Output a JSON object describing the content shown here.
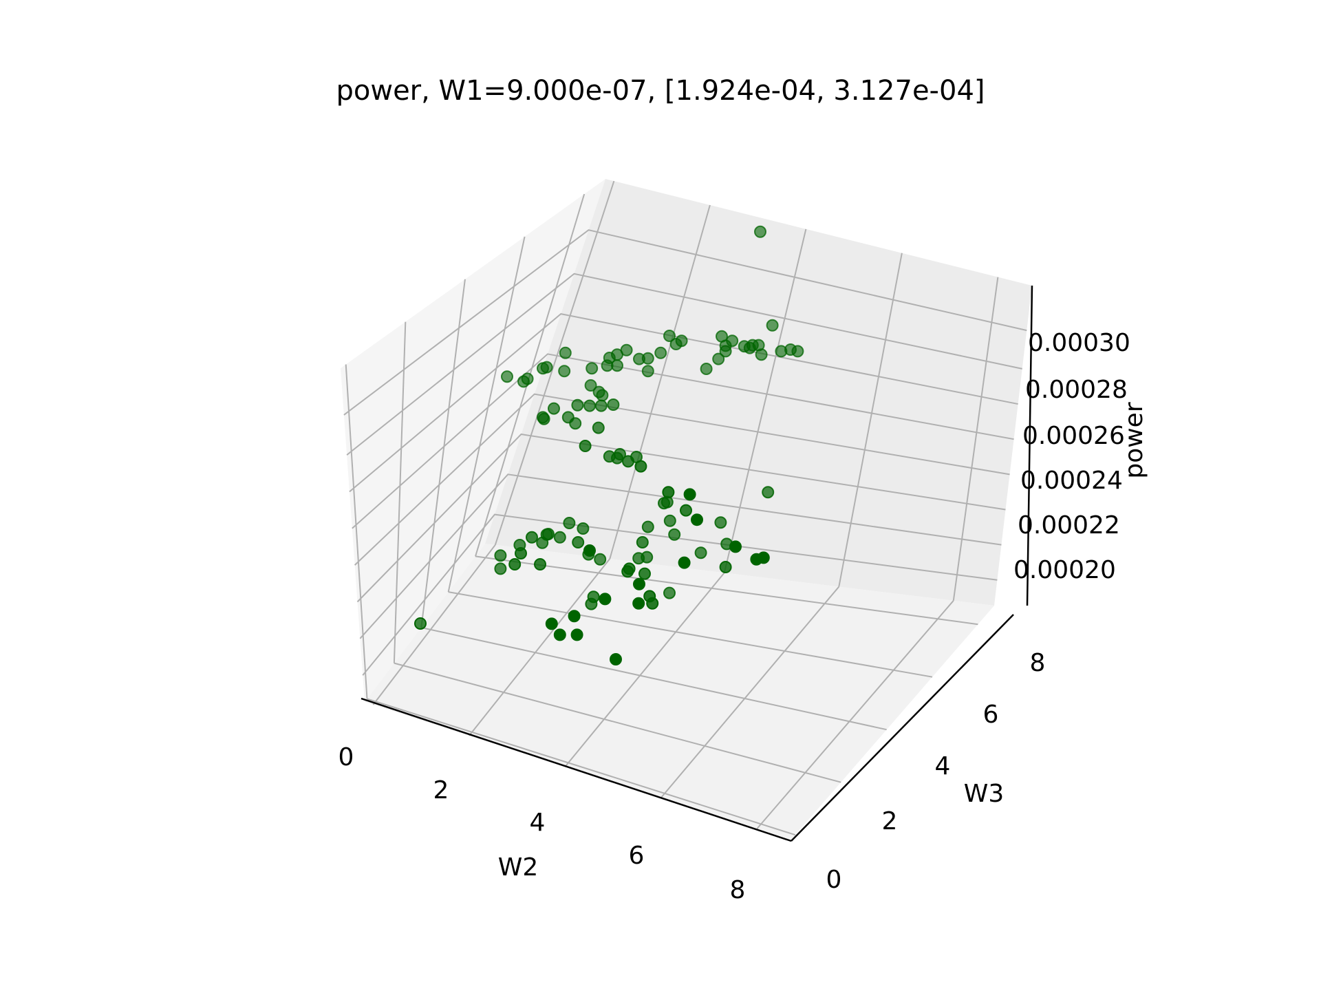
{
  "chart_data": {
    "type": "scatter",
    "title": "power, W1=9.000e-07, [1.924e-04, 3.127e-04]",
    "xlabel": "W2",
    "ylabel": "W3",
    "zlabel": "power",
    "xticks": [
      "0",
      "2",
      "4",
      "6",
      "8"
    ],
    "yticks": [
      "0",
      "2",
      "4",
      "6",
      "8"
    ],
    "zticks": [
      "0.00020",
      "0.00022",
      "0.00024",
      "0.00026",
      "0.00028",
      "0.00030"
    ],
    "grid": true,
    "marker_color": "#006400",
    "points_screen_view": [
      [
        1021,
        1208,
        1
      ],
      [
        1036,
        1228,
        1
      ],
      [
        1067,
        1228,
        1
      ],
      [
        1062,
        1194,
        1
      ],
      [
        1093,
        1172,
        0.75
      ],
      [
        1179,
        1171,
        1
      ],
      [
        1204,
        1171,
        0.85
      ],
      [
        1118,
        1163,
        1
      ],
      [
        1097,
        1159,
        0.75
      ],
      [
        1180,
        1136,
        1
      ],
      [
        1199,
        1158,
        0.85
      ],
      [
        1235,
        1152,
        0.7
      ],
      [
        1194,
        1087,
        0.7
      ],
      [
        1190,
        1117,
        0.8
      ],
      [
        1159,
        1113,
        0.8
      ],
      [
        1090,
        1075,
        1
      ],
      [
        1069,
        1060,
        0.75
      ],
      [
        1036,
        1051,
        0.7
      ],
      [
        1015,
        1045,
        0.7
      ],
      [
        985,
        1051,
        0.75
      ],
      [
        1000,
        1100,
        0.8
      ],
      [
        954,
        1100,
        0.8
      ],
      [
        928,
        1108,
        0.7
      ],
      [
        928,
        1084,
        0.7
      ],
      [
        965,
        1080,
        0.8
      ],
      [
        963,
        1065,
        0.7
      ],
      [
        1004,
        1061,
        0.7
      ],
      [
        1012,
        1046,
        0.7
      ],
      [
        1053,
        1025,
        0.7
      ],
      [
        1078,
        1035,
        0.7
      ],
      [
        1088,
        1082,
        0.7
      ],
      [
        1109,
        1091,
        0.7
      ],
      [
        1162,
        1108,
        0.8
      ],
      [
        1179,
        1089,
        0.7
      ],
      [
        1186,
        1060,
        0.75
      ],
      [
        1196,
        1032,
        0.7
      ],
      [
        1236,
        1021,
        0.7
      ],
      [
        1244,
        1046,
        0.7
      ],
      [
        1262,
        1097,
        1
      ],
      [
        1292,
        1079,
        0.7
      ],
      [
        1328,
        1024,
        0.7
      ],
      [
        1355,
        1068,
        1
      ],
      [
        1393,
        1091,
        1
      ],
      [
        1406,
        1088,
        1
      ],
      [
        1339,
        1063,
        0.7
      ],
      [
        1337,
        1105,
        0.8
      ],
      [
        1414,
        969,
        0.7
      ],
      [
        1285,
        1019,
        1
      ],
      [
        1265,
        1002,
        0.8
      ],
      [
        1231,
        987,
        0.7
      ],
      [
        1272,
        973,
        1
      ],
      [
        1233,
        969,
        0.85
      ],
      [
        1225,
        989,
        0.7
      ],
      [
        1183,
        922,
        0.8
      ],
      [
        1160,
        913,
        0.75
      ],
      [
        1175,
        905,
        0.7
      ],
      [
        1126,
        904,
        0.7
      ],
      [
        1140,
        907,
        0.7
      ],
      [
        1145,
        900,
        0.7
      ],
      [
        1082,
        885,
        0.75
      ],
      [
        1005,
        833,
        0.65
      ],
      [
        1025,
        817,
        0.65
      ],
      [
        1068,
        811,
        0.65
      ],
      [
        1090,
        812,
        0.65
      ],
      [
        1111,
        812,
        0.65
      ],
      [
        1133,
        810,
        0.65
      ],
      [
        1106,
        852,
        0.7
      ],
      [
        1064,
        844,
        0.65
      ],
      [
        1051,
        833,
        0.65
      ],
      [
        1007,
        836,
        0.65
      ],
      [
        940,
        759,
        0.6
      ],
      [
        970,
        768,
        0.6
      ],
      [
        977,
        763,
        0.6
      ],
      [
        1005,
        744,
        0.6
      ],
      [
        1012,
        742,
        0.6
      ],
      [
        1046,
        716,
        0.6
      ],
      [
        1044,
        749,
        0.6
      ],
      [
        1113,
        793,
        0.6
      ],
      [
        1107,
        787,
        0.6
      ],
      [
        1092,
        775,
        0.6
      ],
      [
        1094,
        744,
        0.6
      ],
      [
        1122,
        739,
        0.6
      ],
      [
        1126,
        725,
        0.6
      ],
      [
        1140,
        739,
        0.6
      ],
      [
        1140,
        719,
        0.6
      ],
      [
        1157,
        711,
        0.6
      ],
      [
        1180,
        727,
        0.6
      ],
      [
        1196,
        749,
        0.6
      ],
      [
        1196,
        726,
        0.6
      ],
      [
        1219,
        716,
        0.6
      ],
      [
        1235,
        685,
        0.6
      ],
      [
        1247,
        700,
        0.6
      ],
      [
        1257,
        694,
        0.6
      ],
      [
        1337,
        713,
        0.6
      ],
      [
        1330,
        686,
        0.6
      ],
      [
        1381,
        707,
        0.6
      ],
      [
        1397,
        702,
        0.6
      ],
      [
        1402,
        719,
        0.6
      ],
      [
        1422,
        666,
        0.6
      ],
      [
        1438,
        713,
        0.6
      ],
      [
        1468,
        713,
        0.6
      ],
      [
        1400,
        496,
        0.6
      ],
      [
        1337,
        703,
        0.6
      ],
      [
        1386,
        702,
        0.6
      ],
      [
        1455,
        710,
        0.6
      ],
      [
        1302,
        745,
        0.6
      ],
      [
        1371,
        704,
        0.6
      ],
      [
        1349,
        694,
        0.6
      ],
      [
        1324,
        727,
        0.6
      ]
    ]
  }
}
